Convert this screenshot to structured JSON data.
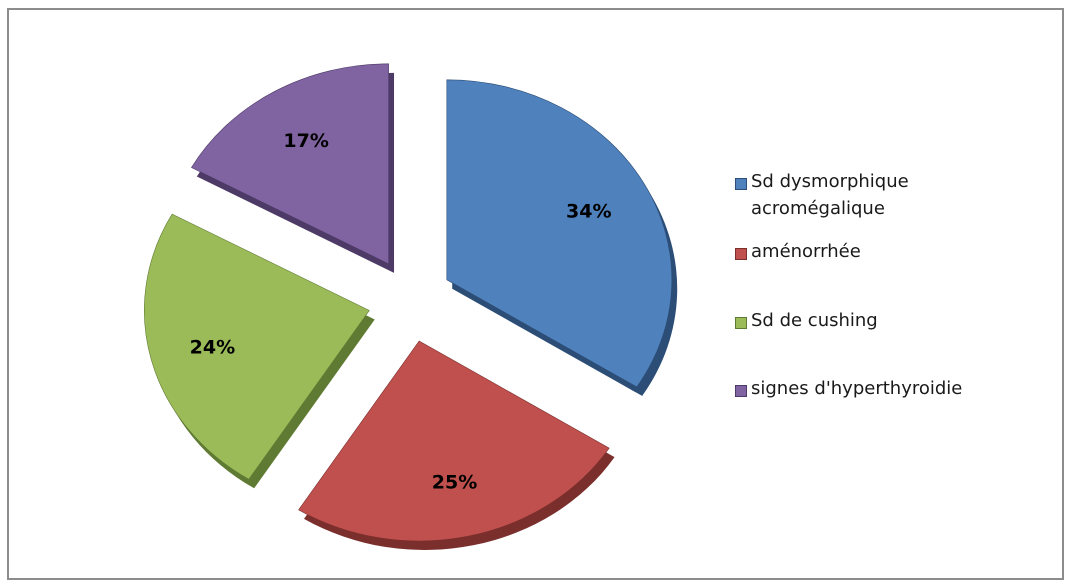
{
  "chart_data": {
    "type": "pie",
    "title": "",
    "legend_position": "right",
    "slices": [
      {
        "label": "Sd dysmorphique acromégalique",
        "value": 34,
        "value_label": "34%",
        "color": "#4f81bd",
        "side_color": "#2c4d75"
      },
      {
        "label": "aménorrhée",
        "value": 25,
        "value_label": "25%",
        "color": "#c0504d",
        "side_color": "#7a2f2d"
      },
      {
        "label": "Sd de cushing",
        "value": 24,
        "value_label": "24%",
        "color": "#9bbb59",
        "side_color": "#5f7a32"
      },
      {
        "label": "signes d'hyperthyroidie",
        "value": 17,
        "value_label": "17%",
        "color": "#8064a2",
        "side_color": "#4d3a66"
      }
    ]
  }
}
